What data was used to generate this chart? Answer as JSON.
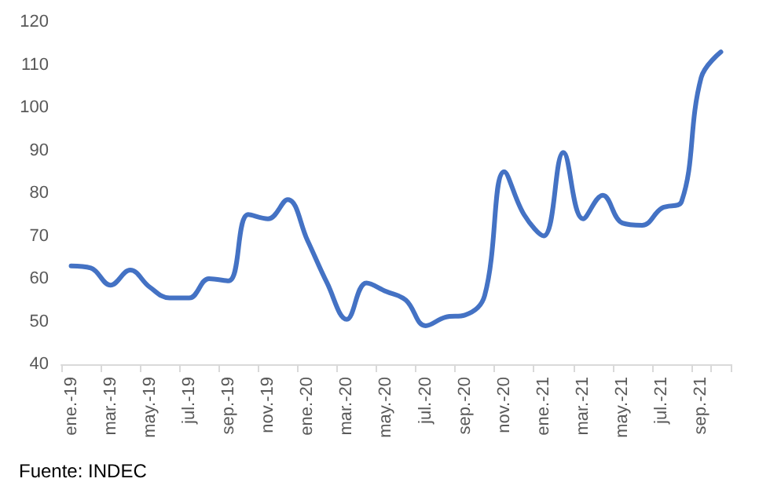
{
  "chart_data": {
    "type": "line",
    "categories": [
      "ene.-19",
      null,
      "mar.-19",
      null,
      "may.-19",
      null,
      "jul.-19",
      null,
      "sep.-19",
      null,
      "nov.-19",
      null,
      "ene.-20",
      null,
      "mar.-20",
      null,
      "may.-20",
      null,
      "jul.-20",
      null,
      "sep.-20",
      null,
      "nov.-20",
      null,
      "ene.-21",
      null,
      "mar.-21",
      null,
      "may.-21",
      null,
      "jul.-21",
      null,
      "sep.-21",
      null
    ],
    "series": [
      {
        "color": "#4472c4",
        "values": [
          63,
          62.5,
          58.5,
          62,
          58,
          55.5,
          55.5,
          60,
          59.5,
          75,
          74,
          78.5,
          69,
          59,
          50.5,
          59,
          57,
          55,
          49,
          51,
          51.5,
          56,
          85,
          75,
          70,
          89.5,
          74,
          79.5,
          73,
          72.5,
          76.5,
          78,
          107,
          113
        ]
      }
    ],
    "ylim": [
      40,
      120
    ],
    "yticks": [
      40,
      50,
      60,
      70,
      80,
      90,
      100,
      110,
      120
    ],
    "marker": "none",
    "line_style": "solid",
    "annotations": [
      "Fuente: INDEC"
    ]
  }
}
